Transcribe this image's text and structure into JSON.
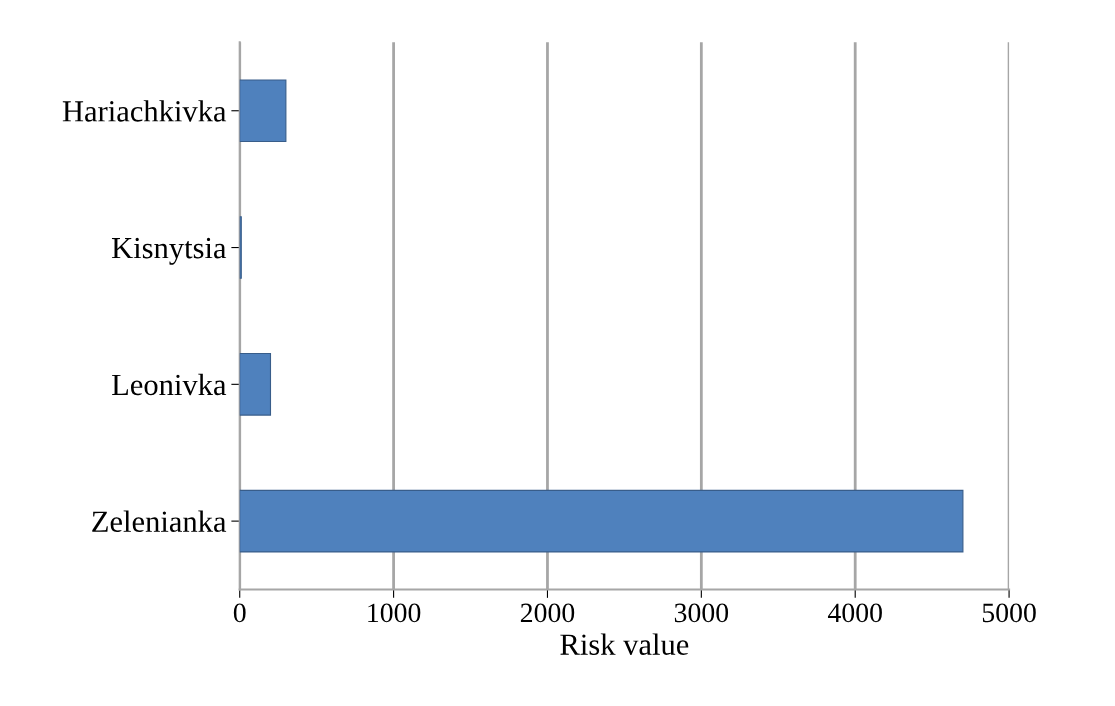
{
  "chart_data": {
    "type": "bar",
    "orientation": "horizontal",
    "categories": [
      "Hariachkivka",
      "Kisnytsia",
      "Leonivka",
      "Zelenianka"
    ],
    "values": [
      300,
      10,
      200,
      4700
    ],
    "color": "#4f81bd",
    "xlabel": "Risk value",
    "xlim": [
      0,
      5000
    ],
    "xticks": [
      0,
      1000,
      2000,
      3000,
      4000,
      5000
    ],
    "grid": "x"
  }
}
